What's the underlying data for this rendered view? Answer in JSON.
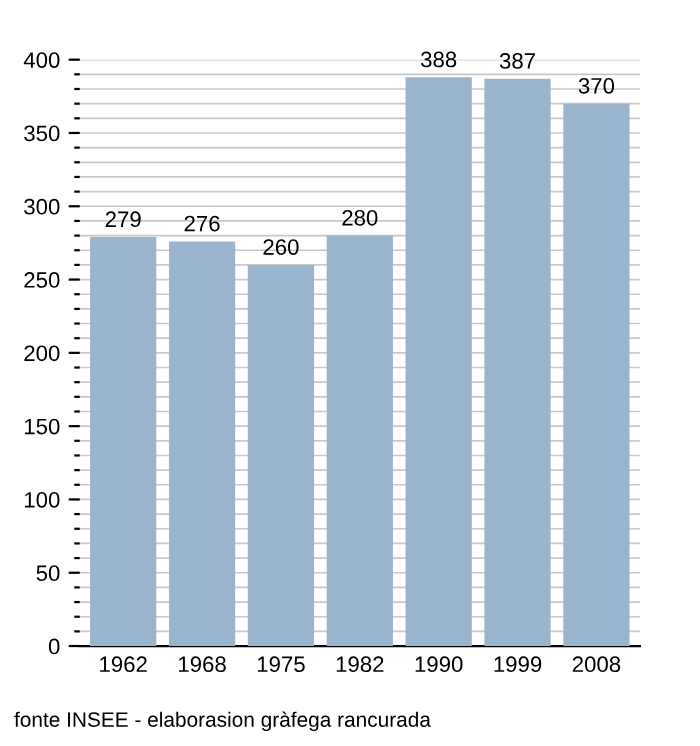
{
  "chart_data": {
    "type": "bar",
    "categories": [
      "1962",
      "1968",
      "1975",
      "1982",
      "1990",
      "1999",
      "2008"
    ],
    "values": [
      279,
      276,
      260,
      280,
      388,
      387,
      370
    ],
    "color": "#9ab4cd",
    "data_labels": true,
    "ylim": [
      0,
      400
    ],
    "yticks": [
      0,
      {
        "value": 10,
        "label": null
      },
      {
        "value": 20,
        "label": null
      },
      {
        "value": 30,
        "label": null
      },
      {
        "value": 40,
        "label": null
      },
      50,
      {
        "value": 60,
        "label": null
      },
      {
        "value": 70,
        "label": null
      },
      {
        "value": 80,
        "label": null
      },
      {
        "value": 90,
        "label": null
      },
      100,
      {
        "value": 110,
        "label": null
      },
      {
        "value": 120,
        "label": null
      },
      {
        "value": 130,
        "label": null
      },
      {
        "value": 140,
        "label": null
      },
      150,
      {
        "value": 160,
        "label": null
      },
      {
        "value": 170,
        "label": null
      },
      {
        "value": 180,
        "label": null
      },
      {
        "value": 190,
        "label": null
      },
      200,
      {
        "value": 210,
        "label": null
      },
      {
        "value": 220,
        "label": null
      },
      {
        "value": 230,
        "label": null
      },
      {
        "value": 240,
        "label": null
      },
      250,
      {
        "value": 260,
        "label": null
      },
      {
        "value": 270,
        "label": null
      },
      {
        "value": 280,
        "label": null
      },
      {
        "value": 290,
        "label": null
      },
      300,
      {
        "value": 310,
        "label": null
      },
      {
        "value": 320,
        "label": null
      },
      {
        "value": 330,
        "label": null
      },
      {
        "value": 340,
        "label": null
      },
      350,
      {
        "value": 360,
        "label": null
      },
      {
        "value": 370,
        "label": null
      },
      {
        "value": 380,
        "label": null
      },
      {
        "value": 390,
        "label": null
      },
      400
    ],
    "grid": "y",
    "annotations": [
      "fonte INSEE - elaborasion gràfega rancurada"
    ]
  }
}
